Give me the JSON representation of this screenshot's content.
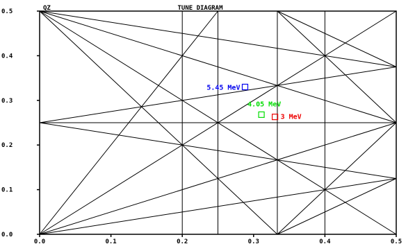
{
  "chart_data": {
    "type": "scatter",
    "title": "TUNE DIAGRAM",
    "corner_label": "QZ",
    "xlabel": "",
    "ylabel": "",
    "xlim": [
      0,
      0.5
    ],
    "ylim": [
      0,
      0.5
    ],
    "x_ticks": [
      "0.0",
      "0.1",
      "0.2",
      "0.3",
      "0.4",
      "0.5"
    ],
    "y_ticks": [
      "0.0",
      "0.1",
      "0.2",
      "0.3",
      "0.4",
      "0.5"
    ],
    "grid": false,
    "resonance_lines": [
      {
        "x": 0.2
      },
      {
        "x": 0.25
      },
      {
        "x": 0.3333
      },
      {
        "x": 0.4
      },
      {
        "y": 0.25
      },
      {
        "from": [
          0,
          0
        ],
        "to": [
          0.5,
          0.5
        ]
      },
      {
        "from": [
          0,
          0
        ],
        "to": [
          0.5,
          0.25
        ]
      },
      {
        "from": [
          0,
          0
        ],
        "to": [
          0.5,
          0.125
        ]
      },
      {
        "from": [
          0,
          0.5
        ],
        "to": [
          0.5,
          0
        ]
      },
      {
        "from": [
          0,
          0.5
        ],
        "to": [
          0.5,
          0.25
        ]
      },
      {
        "from": [
          0,
          0.5
        ],
        "to": [
          0.5,
          0.375
        ]
      },
      {
        "from": [
          0,
          0.5
        ],
        "to": [
          0.3333,
          0
        ]
      },
      {
        "from": [
          0,
          0.25
        ],
        "to": [
          0.5,
          0.375
        ]
      },
      {
        "from": [
          0,
          0.25
        ],
        "to": [
          0.5,
          0.125
        ]
      },
      {
        "from": [
          0,
          0
        ],
        "to": [
          0.25,
          0.5
        ]
      },
      {
        "from": [
          0.3333,
          0
        ],
        "to": [
          0.5,
          0.25
        ]
      },
      {
        "from": [
          0.3333,
          0
        ],
        "to": [
          0.5,
          0.125
        ]
      },
      {
        "from": [
          0.3333,
          0.5
        ],
        "to": [
          0.5,
          0.25
        ]
      },
      {
        "from": [
          0.3333,
          0.5
        ],
        "to": [
          0.5,
          0.375
        ]
      }
    ],
    "series": [
      {
        "name": "5.45 MeV",
        "x": 0.288,
        "y": 0.33,
        "color": "#0000ee"
      },
      {
        "name": "4.05 MeV",
        "x": 0.311,
        "y": 0.268,
        "color": "#00dd00"
      },
      {
        "name": "3 MeV",
        "x": 0.33,
        "y": 0.263,
        "color": "#ee0000"
      }
    ]
  }
}
